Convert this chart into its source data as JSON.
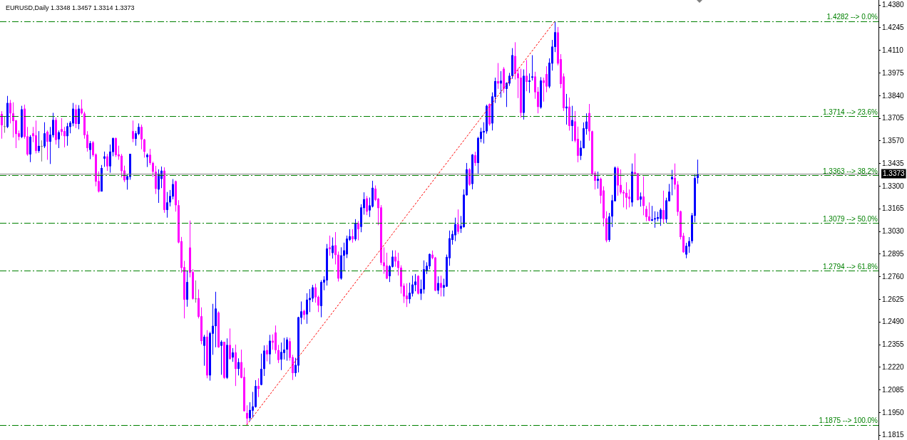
{
  "chart_data": {
    "type": "candlestick",
    "title": "EURUSD,Daily 1.3348 1.3457 1.3314 1.3373",
    "categories": [
      null,
      null,
      null,
      null,
      null,
      null,
      null,
      null,
      null,
      null,
      null,
      null,
      null,
      null,
      null,
      null,
      null,
      null,
      null,
      null,
      null,
      null,
      null,
      null,
      null,
      null,
      null,
      null,
      null,
      null,
      null,
      null,
      null,
      null,
      null,
      null,
      null,
      null,
      null,
      null,
      null,
      null,
      null,
      null,
      null,
      null,
      null,
      null,
      null,
      null,
      null,
      null,
      null,
      null,
      null,
      null,
      null,
      null,
      null,
      null,
      null,
      null,
      null,
      null,
      null,
      null,
      null,
      null,
      null,
      null,
      null,
      null,
      null,
      null,
      null,
      null,
      null,
      null,
      null,
      null,
      null,
      null,
      null,
      null,
      null,
      null,
      null,
      null,
      null,
      null,
      null,
      null,
      null,
      null,
      null,
      null,
      null,
      null,
      null,
      null,
      null,
      null,
      null,
      null,
      null,
      null,
      null,
      null,
      null,
      null,
      null,
      null,
      null,
      null,
      null,
      null,
      null,
      null,
      null,
      null,
      null,
      null,
      null,
      null,
      null,
      null,
      null,
      null,
      null,
      null,
      null,
      null,
      null,
      null,
      null,
      null,
      null,
      null,
      null,
      null,
      null,
      null,
      null,
      null,
      null,
      null,
      null,
      null,
      null,
      null,
      null,
      null,
      null,
      null,
      null,
      null,
      null,
      null,
      null,
      null,
      null,
      null,
      null,
      null,
      null,
      null,
      null,
      null,
      null,
      null,
      null,
      null,
      null,
      null,
      null,
      null,
      null,
      null,
      null,
      null,
      null,
      null,
      null,
      null,
      null,
      null,
      null,
      null,
      null,
      null,
      null,
      null,
      null,
      null,
      null,
      null,
      null,
      null,
      null,
      null,
      null,
      null,
      null,
      null,
      null,
      null,
      null,
      null,
      null,
      null,
      null,
      null,
      null,
      null,
      null,
      null,
      null,
      null,
      null,
      null,
      null,
      null,
      null,
      null,
      null,
      null,
      null,
      null,
      null,
      null,
      null,
      null,
      null,
      null,
      null,
      null,
      null,
      null,
      null,
      null,
      null,
      null,
      null,
      null,
      null,
      null,
      null,
      null,
      null,
      null,
      null,
      null,
      null,
      null,
      null,
      null,
      null,
      null,
      null,
      null,
      null,
      null,
      null,
      null,
      null,
      null,
      null,
      null,
      null,
      null,
      null,
      null,
      null,
      null,
      null,
      null,
      null,
      null,
      null,
      null,
      null,
      null,
      null,
      null,
      null,
      null,
      null,
      null,
      null,
      null,
      null,
      null,
      null,
      null,
      null,
      null,
      null,
      null,
      null,
      null,
      null,
      null,
      null,
      null,
      null,
      null,
      null,
      null
    ],
    "ohlc": [
      [
        1.3729,
        1.3746,
        1.3582,
        1.3662
      ],
      [
        1.3656,
        1.3715,
        1.3617,
        1.3656
      ],
      [
        1.3652,
        1.3837,
        1.3645,
        1.3795
      ],
      [
        1.3795,
        1.3813,
        1.3673,
        1.3733
      ],
      [
        1.3733,
        1.3799,
        1.3589,
        1.3687
      ],
      [
        1.3691,
        1.3694,
        1.3526,
        1.361
      ],
      [
        1.3614,
        1.3631,
        1.3572,
        1.3593
      ],
      [
        1.3592,
        1.3778,
        1.3585,
        1.3757
      ],
      [
        1.3761,
        1.3785,
        1.3582,
        1.3593
      ],
      [
        1.3596,
        1.3652,
        1.348,
        1.3488
      ],
      [
        1.3488,
        1.3603,
        1.3442,
        1.3593
      ],
      [
        1.3614,
        1.3652,
        1.3561,
        1.3597
      ],
      [
        1.3602,
        1.369,
        1.3494,
        1.3509
      ],
      [
        1.3509,
        1.3627,
        1.3498,
        1.3539
      ],
      [
        1.3539,
        1.3572,
        1.3446,
        1.3539
      ],
      [
        1.3536,
        1.368,
        1.3526,
        1.3614
      ],
      [
        1.3623,
        1.3631,
        1.3456,
        1.3564
      ],
      [
        1.3564,
        1.3652,
        1.3431,
        1.3606
      ],
      [
        1.3603,
        1.3736,
        1.3589,
        1.3694
      ],
      [
        1.3694,
        1.3708,
        1.3547,
        1.3574
      ],
      [
        1.3578,
        1.3631,
        1.3526,
        1.362
      ],
      [
        1.3639,
        1.3704,
        1.36,
        1.3623
      ],
      [
        1.3627,
        1.3652,
        1.353,
        1.3597
      ],
      [
        1.3597,
        1.3676,
        1.354,
        1.3656
      ],
      [
        1.3652,
        1.3687,
        1.3614,
        1.3677
      ],
      [
        1.3673,
        1.3795,
        1.3656,
        1.3761
      ],
      [
        1.3757,
        1.3785,
        1.3645,
        1.367
      ],
      [
        1.367,
        1.3782,
        1.3638,
        1.3761
      ],
      [
        1.3761,
        1.3816,
        1.3726,
        1.3733
      ],
      [
        1.3732,
        1.3743,
        1.3582,
        1.3603
      ],
      [
        1.3606,
        1.3627,
        1.3505,
        1.3526
      ],
      [
        1.3515,
        1.3568,
        1.346,
        1.3555
      ],
      [
        1.356,
        1.3568,
        1.3474,
        1.3484
      ],
      [
        1.3488,
        1.3494,
        1.3298,
        1.3326
      ],
      [
        1.3329,
        1.3387,
        1.3261,
        1.3267
      ],
      [
        1.3267,
        1.3425,
        1.3267,
        1.3407
      ],
      [
        1.3463,
        1.3505,
        1.3414,
        1.3476
      ],
      [
        1.3476,
        1.3491,
        1.339,
        1.3417
      ],
      [
        1.3417,
        1.3547,
        1.3379,
        1.3505
      ],
      [
        1.3502,
        1.3589,
        1.3477,
        1.3585
      ],
      [
        1.3585,
        1.3589,
        1.3473,
        1.3484
      ],
      [
        1.3488,
        1.354,
        1.3456,
        1.3477
      ],
      [
        1.348,
        1.3491,
        1.3351,
        1.3389
      ],
      [
        1.3392,
        1.3421,
        1.3323,
        1.3334
      ],
      [
        1.3337,
        1.3368,
        1.3278,
        1.3358
      ],
      [
        1.3354,
        1.3492,
        1.3337,
        1.3492
      ],
      [
        1.3627,
        1.369,
        1.3561,
        1.3581
      ],
      [
        1.3581,
        1.3628,
        1.354,
        1.3614
      ],
      [
        1.361,
        1.3673,
        1.3603,
        1.3652
      ],
      [
        1.3652,
        1.3666,
        1.3519,
        1.3578
      ],
      [
        1.3577,
        1.3581,
        1.3469,
        1.3504
      ],
      [
        1.3472,
        1.3494,
        1.3413,
        1.3486
      ],
      [
        1.3486,
        1.3521,
        1.3425,
        1.3437
      ],
      [
        1.3437,
        1.3445,
        1.3354,
        1.3385
      ],
      [
        1.3385,
        1.342,
        1.3252,
        1.3283
      ],
      [
        1.3279,
        1.3399,
        1.3199,
        1.3374
      ],
      [
        1.3342,
        1.3416,
        1.3287,
        1.3391
      ],
      [
        1.3391,
        1.3411,
        1.314,
        1.3157
      ],
      [
        1.3157,
        1.3264,
        1.3111,
        1.3202
      ],
      [
        1.3202,
        1.3276,
        1.3178,
        1.324
      ],
      [
        1.3237,
        1.3341,
        1.322,
        1.3311
      ],
      [
        1.3328,
        1.3332,
        1.3147,
        1.3185
      ],
      [
        1.3185,
        1.3215,
        1.2958,
        1.2963
      ],
      [
        1.2971,
        1.2996,
        1.2783,
        1.2811
      ],
      [
        1.2816,
        1.2853,
        1.251,
        1.2622
      ],
      [
        1.2622,
        1.2795,
        1.258,
        1.2727
      ],
      [
        1.2933,
        1.3094,
        1.2755,
        1.2783
      ],
      [
        1.2786,
        1.2804,
        1.2622,
        1.2627
      ],
      [
        1.2629,
        1.2737,
        1.2604,
        1.2629
      ],
      [
        1.2631,
        1.2683,
        1.251,
        1.252
      ],
      [
        1.2523,
        1.2576,
        1.2356,
        1.2375
      ],
      [
        1.2347,
        1.2412,
        1.2228,
        1.2401
      ],
      [
        1.2401,
        1.244,
        1.2153,
        1.217
      ],
      [
        1.217,
        1.2431,
        1.2139,
        1.2422
      ],
      [
        1.2419,
        1.2597,
        1.2293,
        1.2466
      ],
      [
        1.2464,
        1.2669,
        1.2338,
        1.2569
      ],
      [
        1.2545,
        1.2552,
        1.2335,
        1.2338
      ],
      [
        1.2347,
        1.238,
        1.2174,
        1.2371
      ],
      [
        1.2371,
        1.2371,
        1.2149,
        1.2156
      ],
      [
        1.2156,
        1.2391,
        1.2149,
        1.2352
      ],
      [
        1.2352,
        1.245,
        1.2265,
        1.2268
      ],
      [
        1.2277,
        1.2333,
        1.2251,
        1.2307
      ],
      [
        1.2307,
        1.2354,
        1.2107,
        1.2209
      ],
      [
        1.2209,
        1.2272,
        1.217,
        1.2249
      ],
      [
        1.2249,
        1.2324,
        1.2153,
        1.2156
      ],
      [
        1.2161,
        1.2216,
        1.1955,
        1.1957
      ],
      [
        1.1946,
        1.1992,
        1.1875,
        1.1913
      ],
      [
        1.1915,
        1.201,
        1.1899,
        1.1964
      ],
      [
        1.196,
        1.2072,
        1.1918,
        1.1985
      ],
      [
        1.1982,
        1.2142,
        1.1978,
        1.2107
      ],
      [
        1.2107,
        1.2153,
        1.2041,
        1.209
      ],
      [
        1.2114,
        1.23,
        1.2111,
        1.2209
      ],
      [
        1.2209,
        1.2349,
        1.2167,
        1.2318
      ],
      [
        1.2321,
        1.2352,
        1.2254,
        1.2296
      ],
      [
        1.2296,
        1.2412,
        1.2237,
        1.2377
      ],
      [
        1.2377,
        1.2415,
        1.2324,
        1.2366
      ],
      [
        1.2426,
        1.2468,
        1.23,
        1.2321
      ],
      [
        1.2321,
        1.2352,
        1.2244,
        1.2262
      ],
      [
        1.2265,
        1.2366,
        1.2202,
        1.231
      ],
      [
        1.2304,
        1.2394,
        1.2265,
        1.2324
      ],
      [
        1.2324,
        1.2398,
        1.2258,
        1.2384
      ],
      [
        1.2374,
        1.2394,
        1.2258,
        1.2275
      ],
      [
        1.2279,
        1.2293,
        1.2143,
        1.2184
      ],
      [
        1.2184,
        1.2275,
        1.2163,
        1.2233
      ],
      [
        1.2229,
        1.252,
        1.2188,
        1.2517
      ],
      [
        1.2514,
        1.2611,
        1.2475,
        1.2552
      ],
      [
        1.2555,
        1.2562,
        1.2503,
        1.2531
      ],
      [
        1.2534,
        1.266,
        1.2478,
        1.2622
      ],
      [
        1.262,
        1.2685,
        1.2548,
        1.2632
      ],
      [
        1.2629,
        1.271,
        1.2608,
        1.2695
      ],
      [
        1.2695,
        1.2717,
        1.2604,
        1.2636
      ],
      [
        1.2639,
        1.2646,
        1.2548,
        1.2587
      ],
      [
        1.2584,
        1.2738,
        1.2517,
        1.2727
      ],
      [
        1.2724,
        1.2762,
        1.2678,
        1.2741
      ],
      [
        1.2737,
        1.2954,
        1.2706,
        1.2927
      ],
      [
        1.2934,
        1.3004,
        1.2884,
        1.2923
      ],
      [
        1.29,
        1.2993,
        1.2867,
        1.2944
      ],
      [
        1.2946,
        1.3025,
        1.2832,
        1.2888
      ],
      [
        1.289,
        1.2909,
        1.273,
        1.2748
      ],
      [
        1.2748,
        1.2934,
        1.2741,
        1.2886
      ],
      [
        1.2884,
        1.2962,
        1.2794,
        1.2916
      ],
      [
        1.2892,
        1.3004,
        1.287,
        1.2986
      ],
      [
        1.2979,
        1.3042,
        1.2972,
        1.3
      ],
      [
        1.3,
        1.3042,
        1.2962,
        1.2983
      ],
      [
        1.2982,
        1.3102,
        1.2972,
        1.3077
      ],
      [
        1.3077,
        1.3091,
        1.2976,
        1.3042
      ],
      [
        1.3056,
        1.3191,
        1.3024,
        1.3172
      ],
      [
        1.3168,
        1.3262,
        1.3129,
        1.3221
      ],
      [
        1.3226,
        1.324,
        1.3126,
        1.3147
      ],
      [
        1.3154,
        1.3231,
        1.3115,
        1.3184
      ],
      [
        1.3177,
        1.3331,
        1.3172,
        1.3289
      ],
      [
        1.3284,
        1.3303,
        1.321,
        1.3217
      ],
      [
        1.3224,
        1.3228,
        1.3066,
        1.3168
      ],
      [
        1.3172,
        1.3186,
        1.2828,
        1.2842
      ],
      [
        1.2844,
        1.2934,
        1.2776,
        1.2822
      ],
      [
        1.2825,
        1.2902,
        1.2744,
        1.2748
      ],
      [
        1.2762,
        1.2828,
        1.2727,
        1.2821
      ],
      [
        1.2818,
        1.2916,
        1.2814,
        1.2878
      ],
      [
        1.2878,
        1.2916,
        1.2818,
        1.285
      ],
      [
        1.2853,
        1.2902,
        1.2766,
        1.2811
      ],
      [
        1.2813,
        1.2827,
        1.2658,
        1.27
      ],
      [
        1.2705,
        1.2719,
        1.2602,
        1.2641
      ],
      [
        1.2646,
        1.2719,
        1.2578,
        1.2625
      ],
      [
        1.2625,
        1.2723,
        1.2599,
        1.2663
      ],
      [
        1.2658,
        1.2765,
        1.2641,
        1.2712
      ],
      [
        1.2709,
        1.2775,
        1.2672,
        1.273
      ],
      [
        1.2763,
        1.2768,
        1.2653,
        1.2658
      ],
      [
        1.2658,
        1.2742,
        1.262,
        1.2686
      ],
      [
        1.2683,
        1.2856,
        1.2658,
        1.2803
      ],
      [
        1.2793,
        1.2845,
        1.2775,
        1.2824
      ],
      [
        1.2821,
        1.2897,
        1.2803,
        1.2894
      ],
      [
        1.289,
        1.2915,
        1.2863,
        1.287
      ],
      [
        1.2873,
        1.2877,
        1.2672,
        1.2676
      ],
      [
        1.2676,
        1.2761,
        1.2655,
        1.2721
      ],
      [
        1.2721,
        1.2765,
        1.2641,
        1.2693
      ],
      [
        1.2693,
        1.2747,
        1.2641,
        1.2709
      ],
      [
        1.27,
        1.2891,
        1.2698,
        1.2877
      ],
      [
        1.2869,
        1.3034,
        1.2824,
        1.2988
      ],
      [
        1.2978,
        1.3034,
        1.295,
        1.3013
      ],
      [
        1.3006,
        1.3111,
        1.2971,
        1.3072
      ],
      [
        1.3072,
        1.316,
        1.3013,
        1.3027
      ],
      [
        1.3045,
        1.3121,
        1.302,
        1.3062
      ],
      [
        1.3055,
        1.328,
        1.3051,
        1.3248
      ],
      [
        1.3245,
        1.3437,
        1.3242,
        1.3399
      ],
      [
        1.3399,
        1.3406,
        1.3301,
        1.3308
      ],
      [
        1.3312,
        1.349,
        1.328,
        1.3487
      ],
      [
        1.3483,
        1.3504,
        1.342,
        1.3437
      ],
      [
        1.3437,
        1.3593,
        1.3374,
        1.3586
      ],
      [
        1.3581,
        1.3647,
        1.356,
        1.3624
      ],
      [
        1.3619,
        1.368,
        1.3553,
        1.3628
      ],
      [
        1.3626,
        1.3785,
        1.3612,
        1.3778
      ],
      [
        1.3788,
        1.3792,
        1.3659,
        1.3668
      ],
      [
        1.3673,
        1.3858,
        1.3631,
        1.3834
      ],
      [
        1.3831,
        1.3946,
        1.3795,
        1.3925
      ],
      [
        1.3925,
        1.4033,
        1.3879,
        1.3911
      ],
      [
        1.3911,
        1.3985,
        1.3827,
        1.3928
      ],
      [
        1.3999,
        1.4009,
        1.3855,
        1.3879
      ],
      [
        1.3879,
        1.3918,
        1.3771,
        1.3915
      ],
      [
        1.3911,
        1.3974,
        1.3897,
        1.3957
      ],
      [
        1.3956,
        1.4122,
        1.3939,
        1.408
      ],
      [
        1.4075,
        1.4157,
        1.3935,
        1.3971
      ],
      [
        1.3971,
        1.4002,
        1.3824,
        1.3943
      ],
      [
        1.3946,
        1.3999,
        1.3708,
        1.3736
      ],
      [
        1.3736,
        1.3995,
        1.3696,
        1.3957
      ],
      [
        1.3957,
        1.4051,
        1.3865,
        1.3921
      ],
      [
        1.3921,
        1.3971,
        1.3855,
        1.3929
      ],
      [
        1.3946,
        1.408,
        1.3929,
        1.3953
      ],
      [
        1.3953,
        1.3981,
        1.382,
        1.3859
      ],
      [
        1.3862,
        1.389,
        1.3733,
        1.3771
      ],
      [
        1.3768,
        1.3949,
        1.3761,
        1.3929
      ],
      [
        1.3929,
        1.3946,
        1.3803,
        1.3915
      ],
      [
        1.3967,
        1.4014,
        1.3859,
        1.3893
      ],
      [
        1.3893,
        1.4061,
        1.3883,
        1.4035
      ],
      [
        1.403,
        1.4171,
        1.3988,
        1.4131
      ],
      [
        1.4129,
        1.4282,
        1.4098,
        1.4217
      ],
      [
        1.4216,
        1.4248,
        1.4019,
        1.403
      ],
      [
        1.4056,
        1.4086,
        1.3883,
        1.3908
      ],
      [
        1.3953,
        1.3971,
        1.3747,
        1.3764
      ],
      [
        1.3763,
        1.3849,
        1.3666,
        1.3773
      ],
      [
        1.3773,
        1.3827,
        1.363,
        1.3658
      ],
      [
        1.3658,
        1.3778,
        1.3567,
        1.3693
      ],
      [
        1.3685,
        1.3747,
        1.356,
        1.357
      ],
      [
        1.3581,
        1.3654,
        1.3441,
        1.348
      ],
      [
        1.348,
        1.357,
        1.3455,
        1.3528
      ],
      [
        1.3525,
        1.3679,
        1.3525,
        1.3644
      ],
      [
        1.364,
        1.3733,
        1.3606,
        1.3684
      ],
      [
        1.3735,
        1.3789,
        1.357,
        1.3626
      ],
      [
        1.3626,
        1.363,
        1.3359,
        1.3373
      ],
      [
        1.3378,
        1.3388,
        1.3279,
        1.3331
      ],
      [
        1.3331,
        1.3385,
        1.3284,
        1.3343
      ],
      [
        1.3343,
        1.335,
        1.3195,
        1.3242
      ],
      [
        1.3273,
        1.3298,
        1.3059,
        1.3107
      ],
      [
        1.3107,
        1.3149,
        1.2964,
        1.2975
      ],
      [
        1.2978,
        1.3139,
        1.2967,
        1.3118
      ],
      [
        1.3118,
        1.3247,
        1.3055,
        1.3214
      ],
      [
        1.3209,
        1.3416,
        1.3209,
        1.341
      ],
      [
        1.3406,
        1.3416,
        1.3242,
        1.3303
      ],
      [
        1.3306,
        1.3399,
        1.3251,
        1.3261
      ],
      [
        1.3264,
        1.3275,
        1.3172,
        1.3256
      ],
      [
        1.3259,
        1.3322,
        1.316,
        1.323
      ],
      [
        1.3236,
        1.3279,
        1.3172,
        1.3223
      ],
      [
        1.3202,
        1.3434,
        1.3177,
        1.3385
      ],
      [
        1.3382,
        1.3494,
        1.3359,
        1.3371
      ],
      [
        1.3376,
        1.3376,
        1.3213,
        1.3216
      ],
      [
        1.3219,
        1.3261,
        1.3177,
        1.3237
      ],
      [
        1.3237,
        1.3357,
        1.3125,
        1.3181
      ],
      [
        1.3163,
        1.3181,
        1.309,
        1.3115
      ],
      [
        1.3118,
        1.3202,
        1.309,
        1.3093
      ],
      [
        1.3093,
        1.3181,
        1.309,
        1.3101
      ],
      [
        1.31,
        1.3149,
        1.3051,
        1.3108
      ],
      [
        1.3104,
        1.3146,
        1.309,
        1.3114
      ],
      [
        1.3104,
        1.3167,
        1.3062,
        1.3158
      ],
      [
        1.3156,
        1.3272,
        1.3079,
        1.3101
      ],
      [
        1.3101,
        1.323,
        1.3079,
        1.3214
      ],
      [
        1.3209,
        1.3312,
        1.3209,
        1.3266
      ],
      [
        1.334,
        1.3396,
        1.3244,
        1.3354
      ],
      [
        1.3348,
        1.3434,
        1.3279,
        1.3308
      ],
      [
        1.3308,
        1.3329,
        1.3122,
        1.3146
      ],
      [
        1.3149,
        1.3153,
        1.2981,
        1.2995
      ],
      [
        1.3003,
        1.302,
        1.2901,
        1.2905
      ],
      [
        1.2891,
        1.2961,
        1.2869,
        1.2943
      ],
      [
        1.2939,
        1.2995,
        1.2901,
        1.2971
      ],
      [
        1.2971,
        1.3139,
        1.2957,
        1.3125
      ],
      [
        1.3122,
        1.3368,
        1.3083,
        1.3347
      ],
      [
        1.3348,
        1.3457,
        1.3314,
        1.3373
      ],
      null,
      null,
      null,
      null,
      null,
      null,
      null,
      null,
      null,
      null,
      null,
      null,
      null,
      null,
      null,
      null,
      null,
      null,
      null,
      null,
      null,
      null,
      null,
      null,
      null,
      null,
      null,
      null,
      null,
      null,
      null,
      null,
      null,
      null,
      null,
      null,
      null,
      null,
      null,
      null,
      null,
      null,
      null,
      null,
      null,
      null,
      null,
      null,
      null,
      null,
      null,
      null,
      null,
      null,
      null,
      null,
      null,
      null,
      null,
      null,
      null,
      null,
      null
    ],
    "colors": [
      "#ff00ff",
      "#808080",
      "#0000ff",
      "#ff00ff",
      "#ff00ff",
      "#ff00ff",
      "#ff00ff",
      "#0000ff",
      "#ff00ff",
      "#ff00ff",
      "#0000ff",
      "#ff00ff",
      "#ff00ff",
      "#0000ff",
      "#808080",
      "#0000ff",
      "#ff00ff",
      "#0000ff",
      "#0000ff",
      "#ff00ff",
      "#0000ff",
      "#ff00ff",
      "#ff00ff",
      "#0000ff",
      "#0000ff",
      "#0000ff",
      "#ff00ff",
      "#0000ff",
      "#ff00ff",
      "#ff00ff",
      "#ff00ff",
      "#0000ff",
      "#ff00ff",
      "#ff00ff",
      "#ff00ff",
      "#0000ff",
      "#0000ff",
      "#ff00ff",
      "#0000ff",
      "#0000ff",
      "#ff00ff",
      "#ff00ff",
      "#ff00ff",
      "#ff00ff",
      "#0000ff",
      "#0000ff",
      "#ff00ff",
      "#0000ff",
      "#0000ff",
      "#ff00ff",
      "#ff00ff",
      "#0000ff",
      "#ff00ff",
      "#ff00ff",
      "#ff00ff",
      "#0000ff",
      "#0000ff",
      "#ff00ff",
      "#0000ff",
      "#0000ff",
      "#0000ff",
      "#ff00ff",
      "#ff00ff",
      "#ff00ff",
      "#ff00ff",
      "#0000ff",
      "#ff00ff",
      "#ff00ff",
      "#808080",
      "#ff00ff",
      "#ff00ff",
      "#0000ff",
      "#ff00ff",
      "#0000ff",
      "#0000ff",
      "#0000ff",
      "#ff00ff",
      "#0000ff",
      "#ff00ff",
      "#0000ff",
      "#ff00ff",
      "#0000ff",
      "#ff00ff",
      "#0000ff",
      "#ff00ff",
      "#ff00ff",
      "#ff00ff",
      "#0000ff",
      "#0000ff",
      "#0000ff",
      "#ff00ff",
      "#0000ff",
      "#0000ff",
      "#ff00ff",
      "#0000ff",
      "#ff00ff",
      "#ff00ff",
      "#ff00ff",
      "#0000ff",
      "#0000ff",
      "#0000ff",
      "#ff00ff",
      "#ff00ff",
      "#0000ff",
      "#0000ff",
      "#0000ff",
      "#ff00ff",
      "#0000ff",
      "#0000ff",
      "#0000ff",
      "#ff00ff",
      "#ff00ff",
      "#0000ff",
      "#0000ff",
      "#0000ff",
      "#ff00ff",
      "#0000ff",
      "#ff00ff",
      "#ff00ff",
      "#0000ff",
      "#0000ff",
      "#0000ff",
      "#0000ff",
      "#ff00ff",
      "#0000ff",
      "#ff00ff",
      "#0000ff",
      "#0000ff",
      "#ff00ff",
      "#0000ff",
      "#0000ff",
      "#ff00ff",
      "#ff00ff",
      "#ff00ff",
      "#ff00ff",
      "#ff00ff",
      "#0000ff",
      "#0000ff",
      "#ff00ff",
      "#ff00ff",
      "#ff00ff",
      "#ff00ff",
      "#ff00ff",
      "#0000ff",
      "#0000ff",
      "#0000ff",
      "#ff00ff",
      "#0000ff",
      "#0000ff",
      "#0000ff",
      "#0000ff",
      "#ff00ff",
      "#ff00ff",
      "#0000ff",
      "#ff00ff",
      "#0000ff",
      "#0000ff",
      "#0000ff",
      "#0000ff",
      "#0000ff",
      "#ff00ff",
      "#0000ff",
      "#0000ff",
      "#0000ff",
      "#ff00ff",
      "#0000ff",
      "#ff00ff",
      "#0000ff",
      "#0000ff",
      "#0000ff",
      "#0000ff",
      "#ff00ff",
      "#0000ff",
      "#0000ff",
      "#ff00ff",
      "#0000ff",
      "#ff00ff",
      "#0000ff",
      "#0000ff",
      "#0000ff",
      "#ff00ff",
      "#ff00ff",
      "#ff00ff",
      "#0000ff",
      "#ff00ff",
      "#0000ff",
      "#0000ff",
      "#ff00ff",
      "#ff00ff",
      "#0000ff",
      "#ff00ff",
      "#ff00ff",
      "#0000ff",
      "#0000ff",
      "#0000ff",
      "#ff00ff",
      "#ff00ff",
      "#ff00ff",
      "#0000ff",
      "#ff00ff",
      "#0000ff",
      "#ff00ff",
      "#ff00ff",
      "#0000ff",
      "#0000ff",
      "#0000ff",
      "#ff00ff",
      "#ff00ff",
      "#ff00ff",
      "#0000ff",
      "#ff00ff",
      "#ff00ff",
      "#ff00ff",
      "#0000ff",
      "#0000ff",
      "#0000ff",
      "#ff00ff",
      "#ff00ff",
      "#ff00ff",
      "#ff00ff",
      "#ff00ff",
      "#0000ff",
      "#ff00ff",
      "#ff00ff",
      "#0000ff",
      "#ff00ff",
      "#ff00ff",
      "#ff00ff",
      "#0000ff",
      "#0000ff",
      "#0000ff",
      "#0000ff",
      "#ff00ff",
      "#0000ff",
      "#0000ff",
      "#0000ff",
      "#ff00ff",
      "#ff00ff",
      "#ff00ff",
      "#ff00ff",
      "#0000ff",
      "#0000ff",
      "#0000ff",
      "#0000ff",
      "#0000ff",
      null,
      null,
      null,
      null,
      null,
      null,
      null,
      null,
      null,
      null,
      null,
      null,
      null,
      null,
      null,
      null,
      null,
      null,
      null,
      null,
      null,
      null,
      null,
      null,
      null,
      null,
      null,
      null,
      null,
      null,
      null,
      null,
      null,
      null,
      null,
      null,
      null,
      null,
      null,
      null,
      null,
      null,
      null,
      null,
      null,
      null,
      null,
      null,
      null,
      null,
      null,
      null,
      null,
      null,
      null,
      null,
      null,
      null,
      null,
      null,
      null,
      null,
      null
    ],
    "series": [
      {
        "type": "line",
        "color": "#ff0000",
        "line_style": "dotted",
        "values": [
          null,
          null,
          null,
          null,
          null,
          null,
          null,
          null,
          null,
          null,
          null,
          null,
          null,
          null,
          null,
          null,
          null,
          null,
          null,
          null,
          null,
          null,
          null,
          null,
          null,
          null,
          null,
          null,
          null,
          null,
          null,
          null,
          null,
          null,
          null,
          null,
          null,
          null,
          null,
          null,
          null,
          null,
          null,
          null,
          null,
          null,
          null,
          null,
          null,
          null,
          null,
          null,
          null,
          null,
          null,
          null,
          null,
          null,
          null,
          null,
          null,
          null,
          null,
          null,
          null,
          null,
          null,
          null,
          null,
          null,
          null,
          null,
          null,
          null,
          null,
          null,
          null,
          null,
          null,
          null,
          null,
          null,
          null,
          null,
          null,
          null,
          1.1875,
          null,
          null,
          null,
          null,
          null,
          null,
          null,
          null,
          null,
          null,
          null,
          null,
          null,
          null,
          null,
          null,
          null,
          null,
          null,
          null,
          null,
          null,
          null,
          null,
          null,
          null,
          null,
          null,
          null,
          null,
          null,
          null,
          null,
          null,
          null,
          null,
          null,
          null,
          null,
          null,
          null,
          null,
          null,
          null,
          null,
          null,
          null,
          null,
          null,
          null,
          null,
          null,
          null,
          null,
          null,
          null,
          null,
          null,
          null,
          null,
          null,
          null,
          null,
          null,
          null,
          null,
          null,
          null,
          null,
          null,
          null,
          null,
          null,
          null,
          null,
          null,
          null,
          null,
          null,
          null,
          null,
          null,
          null,
          null,
          null,
          null,
          null,
          null,
          null,
          null,
          null,
          null,
          null,
          null,
          null,
          null,
          null,
          null,
          null,
          null,
          null,
          null,
          null,
          null,
          null,
          null,
          null,
          1.4282,
          null,
          null,
          null,
          null,
          null,
          null,
          null,
          null,
          null,
          null,
          null,
          null,
          null,
          null,
          null,
          null,
          null,
          null,
          null,
          null,
          null,
          null,
          null,
          null,
          null,
          null,
          null,
          null,
          null,
          null,
          null,
          null,
          null,
          null,
          null,
          null,
          null,
          null,
          null,
          null,
          null,
          null,
          null,
          null,
          null,
          null,
          null,
          null,
          null,
          null,
          null,
          null,
          null,
          null,
          null,
          null,
          null,
          null,
          null,
          null,
          null,
          null,
          null,
          null,
          null,
          null,
          null,
          null,
          null,
          null,
          null,
          null,
          null,
          null,
          null,
          null,
          null,
          null,
          null,
          null,
          null,
          null,
          null,
          null,
          null,
          null,
          null,
          null,
          null,
          null,
          null,
          null,
          null,
          null,
          null,
          null,
          null,
          null,
          null,
          null,
          null,
          null,
          null,
          null,
          null,
          null,
          null,
          null,
          null,
          null,
          null,
          null,
          null
        ]
      }
    ],
    "ylim": [
      1.1785,
      1.4409
    ],
    "yticks": [
      1.1815,
      {
        "value": 1.195,
        "label": "1.1950"
      },
      1.2085,
      {
        "value": 1.222,
        "label": "1.2220"
      },
      1.2355,
      {
        "value": 1.249,
        "label": "1.2490"
      },
      1.2625,
      {
        "value": 1.276,
        "label": "1.2760"
      },
      1.2895,
      {
        "value": 1.303,
        "label": "1.3030"
      },
      1.3165,
      {
        "value": 1.33,
        "label": "1.3300"
      },
      1.3435,
      {
        "value": 1.357,
        "label": "1.3570"
      },
      1.3705,
      {
        "value": 1.384,
        "label": "1.3840"
      },
      1.3975,
      {
        "value": 1.411,
        "label": "1.4110"
      },
      1.4245,
      {
        "value": 1.438,
        "label": "1.4380"
      }
    ],
    "ref_lines": [
      {
        "axis": "y",
        "value": 1.4282,
        "label": "1.4282 --> 0.0%",
        "color": "#008000",
        "line_style": "dashed"
      },
      {
        "axis": "y",
        "value": 1.3714,
        "label": "1.3714 --> 23.6%",
        "color": "#008000",
        "line_style": "dashed"
      },
      {
        "axis": "y",
        "value": 1.3363,
        "label": "1.3363 --> 38.2%",
        "color": "#008000",
        "line_style": "dashed"
      },
      {
        "axis": "y",
        "value": 1.3079,
        "label": "1.3079 --> 50.0%",
        "color": "#008000",
        "line_style": "dashed"
      },
      {
        "axis": "y",
        "value": 1.2794,
        "label": "1.2794 --> 61.8%",
        "color": "#008000",
        "line_style": "dashed"
      },
      {
        "axis": "y",
        "value": 1.1875,
        "label": "1.1875 --> 100.0%",
        "color": "#008000",
        "line_style": "dashed"
      },
      {
        "axis": "y",
        "value": 1.3373,
        "label": "1.3373",
        "color": "#808080",
        "line_style": "solid"
      }
    ],
    "marker": "none",
    "tick_labels": "y"
  }
}
